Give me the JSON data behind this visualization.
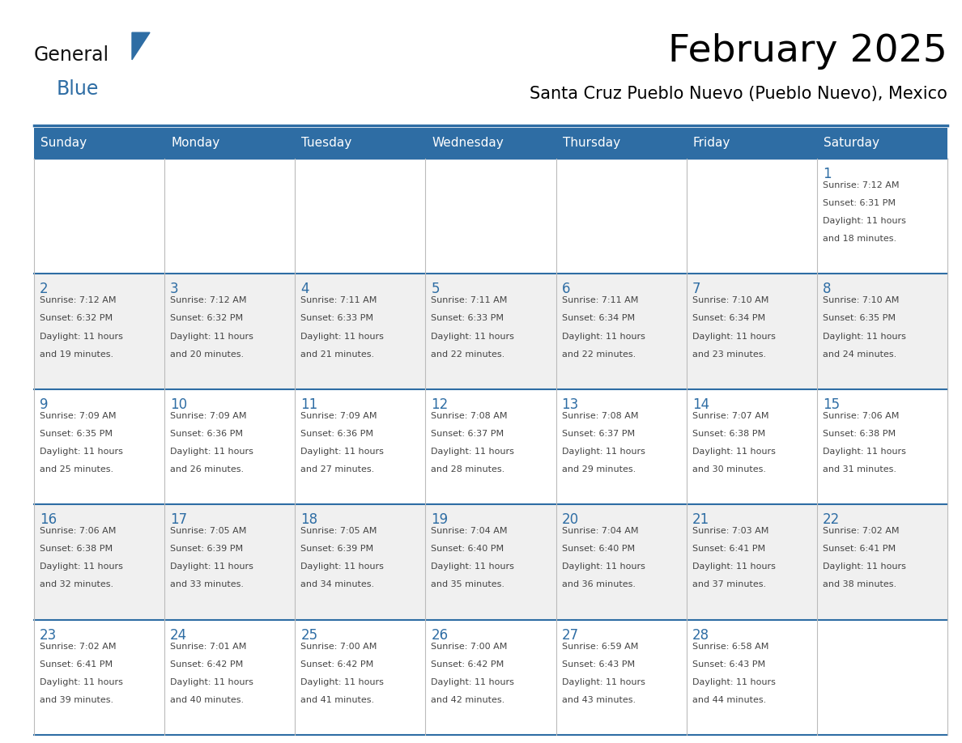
{
  "title": "February 2025",
  "subtitle": "Santa Cruz Pueblo Nuevo (Pueblo Nuevo), Mexico",
  "header_bg": "#2E6DA4",
  "header_text_color": "#FFFFFF",
  "cell_bg_white": "#FFFFFF",
  "cell_bg_gray": "#F0F0F0",
  "day_number_color": "#2E6DA4",
  "cell_text_color": "#444444",
  "grid_line_color": "#2E6DA4",
  "vert_line_color": "#BBBBBB",
  "days_of_week": [
    "Sunday",
    "Monday",
    "Tuesday",
    "Wednesday",
    "Thursday",
    "Friday",
    "Saturday"
  ],
  "calendar_data": [
    [
      null,
      null,
      null,
      null,
      null,
      null,
      {
        "day": "1",
        "sunrise": "7:12 AM",
        "sunset": "6:31 PM",
        "daylight": "11 hours and 18 minutes."
      }
    ],
    [
      {
        "day": "2",
        "sunrise": "7:12 AM",
        "sunset": "6:32 PM",
        "daylight": "11 hours and 19 minutes."
      },
      {
        "day": "3",
        "sunrise": "7:12 AM",
        "sunset": "6:32 PM",
        "daylight": "11 hours and 20 minutes."
      },
      {
        "day": "4",
        "sunrise": "7:11 AM",
        "sunset": "6:33 PM",
        "daylight": "11 hours and 21 minutes."
      },
      {
        "day": "5",
        "sunrise": "7:11 AM",
        "sunset": "6:33 PM",
        "daylight": "11 hours and 22 minutes."
      },
      {
        "day": "6",
        "sunrise": "7:11 AM",
        "sunset": "6:34 PM",
        "daylight": "11 hours and 22 minutes."
      },
      {
        "day": "7",
        "sunrise": "7:10 AM",
        "sunset": "6:34 PM",
        "daylight": "11 hours and 23 minutes."
      },
      {
        "day": "8",
        "sunrise": "7:10 AM",
        "sunset": "6:35 PM",
        "daylight": "11 hours and 24 minutes."
      }
    ],
    [
      {
        "day": "9",
        "sunrise": "7:09 AM",
        "sunset": "6:35 PM",
        "daylight": "11 hours and 25 minutes."
      },
      {
        "day": "10",
        "sunrise": "7:09 AM",
        "sunset": "6:36 PM",
        "daylight": "11 hours and 26 minutes."
      },
      {
        "day": "11",
        "sunrise": "7:09 AM",
        "sunset": "6:36 PM",
        "daylight": "11 hours and 27 minutes."
      },
      {
        "day": "12",
        "sunrise": "7:08 AM",
        "sunset": "6:37 PM",
        "daylight": "11 hours and 28 minutes."
      },
      {
        "day": "13",
        "sunrise": "7:08 AM",
        "sunset": "6:37 PM",
        "daylight": "11 hours and 29 minutes."
      },
      {
        "day": "14",
        "sunrise": "7:07 AM",
        "sunset": "6:38 PM",
        "daylight": "11 hours and 30 minutes."
      },
      {
        "day": "15",
        "sunrise": "7:06 AM",
        "sunset": "6:38 PM",
        "daylight": "11 hours and 31 minutes."
      }
    ],
    [
      {
        "day": "16",
        "sunrise": "7:06 AM",
        "sunset": "6:38 PM",
        "daylight": "11 hours and 32 minutes."
      },
      {
        "day": "17",
        "sunrise": "7:05 AM",
        "sunset": "6:39 PM",
        "daylight": "11 hours and 33 minutes."
      },
      {
        "day": "18",
        "sunrise": "7:05 AM",
        "sunset": "6:39 PM",
        "daylight": "11 hours and 34 minutes."
      },
      {
        "day": "19",
        "sunrise": "7:04 AM",
        "sunset": "6:40 PM",
        "daylight": "11 hours and 35 minutes."
      },
      {
        "day": "20",
        "sunrise": "7:04 AM",
        "sunset": "6:40 PM",
        "daylight": "11 hours and 36 minutes."
      },
      {
        "day": "21",
        "sunrise": "7:03 AM",
        "sunset": "6:41 PM",
        "daylight": "11 hours and 37 minutes."
      },
      {
        "day": "22",
        "sunrise": "7:02 AM",
        "sunset": "6:41 PM",
        "daylight": "11 hours and 38 minutes."
      }
    ],
    [
      {
        "day": "23",
        "sunrise": "7:02 AM",
        "sunset": "6:41 PM",
        "daylight": "11 hours and 39 minutes."
      },
      {
        "day": "24",
        "sunrise": "7:01 AM",
        "sunset": "6:42 PM",
        "daylight": "11 hours and 40 minutes."
      },
      {
        "day": "25",
        "sunrise": "7:00 AM",
        "sunset": "6:42 PM",
        "daylight": "11 hours and 41 minutes."
      },
      {
        "day": "26",
        "sunrise": "7:00 AM",
        "sunset": "6:42 PM",
        "daylight": "11 hours and 42 minutes."
      },
      {
        "day": "27",
        "sunrise": "6:59 AM",
        "sunset": "6:43 PM",
        "daylight": "11 hours and 43 minutes."
      },
      {
        "day": "28",
        "sunrise": "6:58 AM",
        "sunset": "6:43 PM",
        "daylight": "11 hours and 44 minutes."
      },
      null
    ]
  ],
  "logo_color_general": "#111111",
  "logo_color_blue": "#2E6DA4",
  "logo_triangle_color": "#2E6DA4",
  "title_fontsize": 34,
  "subtitle_fontsize": 15,
  "dayname_fontsize": 11,
  "day_num_fontsize": 12,
  "cell_text_fontsize": 8
}
